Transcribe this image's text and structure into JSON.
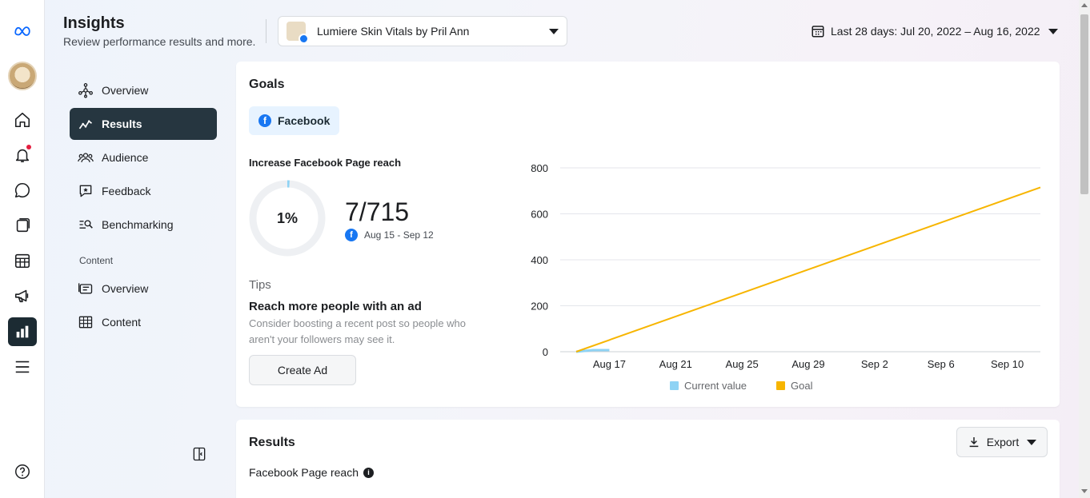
{
  "rail": {
    "icons": [
      "meta-logo-icon",
      "page-avatar",
      "home-icon",
      "notifications-icon",
      "messages-icon",
      "content-icon",
      "planner-icon",
      "ads-icon",
      "insights-icon",
      "menu-icon",
      "help-icon"
    ]
  },
  "header": {
    "title": "Insights",
    "subtitle": "Review performance results and more.",
    "page_name": "Lumiere Skin Vitals by Pril Ann",
    "date_range": "Last 28 days: Jul 20, 2022 – Aug 16, 2022"
  },
  "subnav": {
    "items": [
      {
        "label": "Overview",
        "icon": "overview-icon"
      },
      {
        "label": "Results",
        "icon": "results-icon",
        "active": true
      },
      {
        "label": "Audience",
        "icon": "audience-icon"
      },
      {
        "label": "Feedback",
        "icon": "feedback-icon"
      },
      {
        "label": "Benchmarking",
        "icon": "benchmarking-icon"
      }
    ],
    "section_label": "Content",
    "content_items": [
      {
        "label": "Overview",
        "icon": "content-overview-icon"
      },
      {
        "label": "Content",
        "icon": "content-table-icon"
      }
    ]
  },
  "goals": {
    "title": "Goals",
    "platform_tab": "Facebook",
    "goal_name": "Increase Facebook Page reach",
    "progress_pct": "1%",
    "progress_fraction": 0.01,
    "value_text": "7/715",
    "period": "Aug 15 - Sep 12",
    "tips_heading": "Tips",
    "tip_title": "Reach more people with an ad",
    "tip_desc": "Consider boosting a recent post so people who aren't your followers may see it.",
    "create_ad_label": "Create Ad"
  },
  "chart_data": {
    "type": "line",
    "x_ticks": [
      "Aug 17",
      "Aug 21",
      "Aug 25",
      "Aug 29",
      "Sep 2",
      "Sep 6",
      "Sep 10"
    ],
    "y_ticks": [
      "800",
      "600",
      "400",
      "200",
      "0"
    ],
    "ylim": [
      0,
      800
    ],
    "xlim": [
      "Aug 15",
      "Sep 12"
    ],
    "series": [
      {
        "name": "Current value",
        "color": "#8fd3f4",
        "x": [
          "Aug 15",
          "Aug 16",
          "Aug 17"
        ],
        "y": [
          0,
          7,
          7
        ]
      },
      {
        "name": "Goal",
        "color": "#f7b500",
        "x": [
          "Aug 15",
          "Sep 12"
        ],
        "y": [
          0,
          715
        ]
      }
    ],
    "grid": true,
    "legend": "bottom"
  },
  "results": {
    "title": "Results",
    "export_label": "Export",
    "metric_label": "Facebook Page reach"
  }
}
